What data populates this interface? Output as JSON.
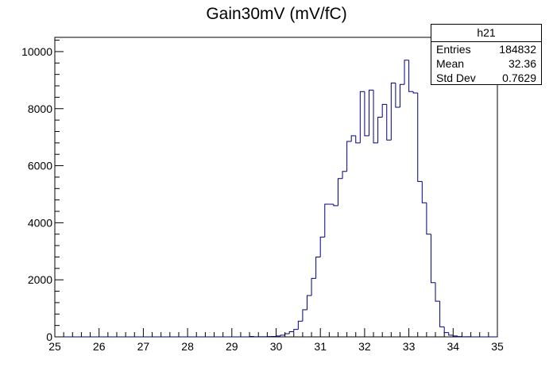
{
  "chart_data": {
    "type": "histogram",
    "title": "Gain30mV (mV/fC)",
    "xlabel": "",
    "ylabel": "",
    "xlim": [
      25,
      35
    ],
    "ylim": [
      0,
      10500
    ],
    "xticks": [
      25,
      26,
      27,
      28,
      29,
      30,
      31,
      32,
      33,
      34,
      35
    ],
    "yticks": [
      0,
      2000,
      4000,
      6000,
      8000,
      10000
    ],
    "bin_width": 0.1,
    "grid": false,
    "line_color": "#00007f",
    "bins": {
      "x_low": [
        29.4,
        29.5,
        29.6,
        29.7,
        29.8,
        29.9,
        30.0,
        30.1,
        30.2,
        30.3,
        30.4,
        30.5,
        30.6,
        30.7,
        30.8,
        30.9,
        31.0,
        31.1,
        31.2,
        31.3,
        31.4,
        31.5,
        31.6,
        31.7,
        31.8,
        31.9,
        32.0,
        32.1,
        32.2,
        32.3,
        32.4,
        32.5,
        32.6,
        32.7,
        32.8,
        32.9,
        33.0,
        33.1,
        33.2,
        33.3,
        33.4,
        33.5,
        33.6,
        33.7,
        33.8,
        33.9,
        34.0,
        34.1,
        34.2,
        34.3
      ],
      "counts": [
        15,
        5,
        5,
        5,
        10,
        15,
        30,
        60,
        110,
        180,
        260,
        550,
        950,
        1450,
        2050,
        2800,
        3500,
        4650,
        4650,
        4600,
        5550,
        5800,
        6850,
        7050,
        6800,
        8600,
        7050,
        8650,
        6800,
        7700,
        8150,
        6900,
        8900,
        8050,
        8850,
        9700,
        8600,
        8550,
        5450,
        4700,
        3600,
        1900,
        1250,
        350,
        150,
        60,
        30,
        10,
        5,
        5
      ]
    },
    "stats": {
      "name": "h21",
      "entries_label": "Entries",
      "entries": "184832",
      "mean_label": "Mean",
      "mean": "32.36",
      "stddev_label": "Std Dev",
      "stddev": "0.7629"
    }
  }
}
